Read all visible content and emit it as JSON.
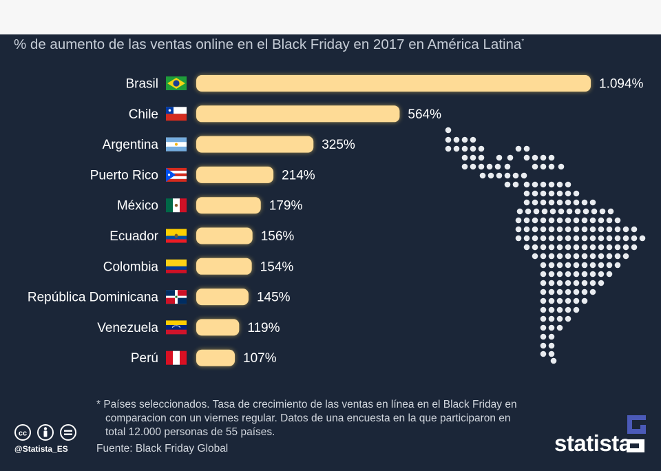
{
  "header": {
    "subtitle": "% de aumento de las ventas online en el Black Friday en 2017 en América Latina",
    "subtitle_mark": "*"
  },
  "chart_data": {
    "type": "bar",
    "orientation": "horizontal",
    "title": "% de aumento de las ventas online en el Black Friday en 2017 en América Latina*",
    "unit": "%",
    "categories": [
      "Brasil",
      "Chile",
      "Argentina",
      "Puerto Rico",
      "México",
      "Ecuador",
      "Colombia",
      "República Dominicana",
      "Venezuela",
      "Perú"
    ],
    "values": [
      1094,
      564,
      325,
      214,
      179,
      156,
      154,
      145,
      119,
      107
    ],
    "value_labels": [
      "1.094%",
      "564%",
      "325%",
      "214%",
      "179%",
      "156%",
      "154%",
      "145%",
      "119%",
      "107%"
    ],
    "flags": [
      "brazil-flag",
      "chile-flag",
      "argentina-flag",
      "puerto-rico-flag",
      "mexico-flag",
      "ecuador-flag",
      "colombia-flag",
      "dominican-republic-flag",
      "venezuela-flag",
      "peru-flag"
    ],
    "bar_color": "#fedb96",
    "glow_color": "#ffd35a",
    "xlim": [
      0,
      1094
    ],
    "grid": false,
    "legend": "none"
  },
  "footer": {
    "footnote_lines": [
      "* Países seleccionados. Tasa de crecimiento de las ventas en línea en el Black Friday en",
      "comparacion con un viernes regular. Datos de una encuesta en la que participaron en",
      "total 12.000 personas de 55 países."
    ],
    "source": "Fuente: Black Friday Global",
    "handle": "@Statista_ES",
    "brand": "statista",
    "license_icons": [
      "cc-icon",
      "by-icon",
      "equals-icon"
    ]
  },
  "colors": {
    "background": "#1b2638",
    "top_strip": "#f7f7f7",
    "text": "#ffffff",
    "muted_text": "#d2d7de",
    "map_dots": "#e9ecf0",
    "brand_mark": "#4b5ab8"
  },
  "decor": {
    "map_icon": "latin-america-dot-map-icon"
  }
}
